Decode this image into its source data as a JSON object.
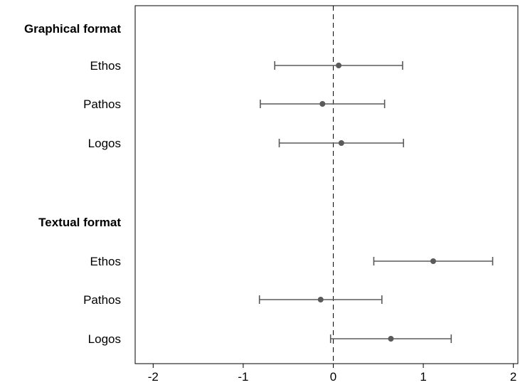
{
  "chart_data": {
    "type": "scatter",
    "style": "coefficient-plot",
    "xlim": [
      -2.2,
      2.05
    ],
    "xticks": [
      "-2",
      "-1",
      "0",
      "1",
      "2"
    ],
    "reference_line": {
      "x": 0,
      "style": "dashed"
    },
    "grid": false,
    "legend": "none",
    "colors": {
      "marker": "#5a5a5a",
      "frame": "#000000"
    },
    "groups": [
      {
        "label": "Graphical format",
        "rows": [
          {
            "label": "Ethos",
            "estimate": 0.06,
            "ci_low": -0.65,
            "ci_high": 0.77
          },
          {
            "label": "Pathos",
            "estimate": -0.12,
            "ci_low": -0.81,
            "ci_high": 0.57
          },
          {
            "label": "Logos",
            "estimate": 0.09,
            "ci_low": -0.6,
            "ci_high": 0.78
          }
        ]
      },
      {
        "label": "Textual format",
        "rows": [
          {
            "label": "Ethos",
            "estimate": 1.11,
            "ci_low": 0.45,
            "ci_high": 1.77
          },
          {
            "label": "Pathos",
            "estimate": -0.14,
            "ci_low": -0.82,
            "ci_high": 0.54
          },
          {
            "label": "Logos",
            "estimate": 0.64,
            "ci_low": -0.03,
            "ci_high": 1.31
          }
        ]
      }
    ]
  }
}
